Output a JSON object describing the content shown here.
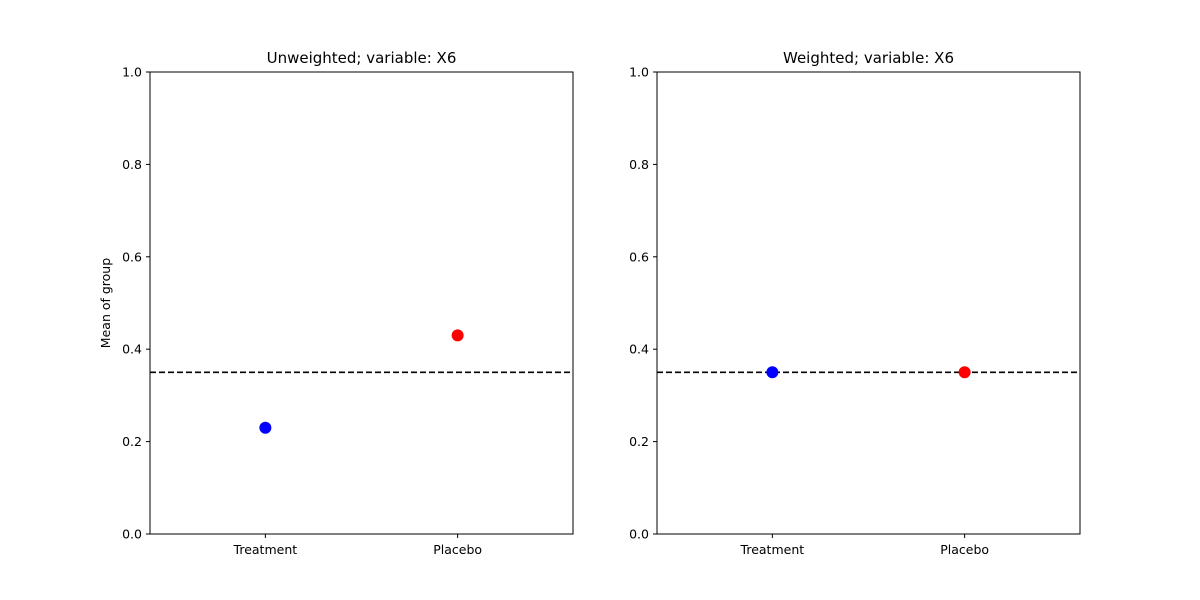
{
  "chart_data": [
    {
      "type": "scatter",
      "title": "Unweighted; variable: X6",
      "xlabel": "",
      "ylabel": "Mean of group",
      "categories": [
        "Treatment",
        "Placebo"
      ],
      "ylim": [
        0,
        1
      ],
      "yticks": [
        "0.0",
        "0.2",
        "0.4",
        "0.6",
        "0.8",
        "1.0"
      ],
      "grid": false,
      "points": [
        {
          "category": "Treatment",
          "y": 0.23,
          "color": "#0000ff"
        },
        {
          "category": "Placebo",
          "y": 0.43,
          "color": "#ff0000"
        }
      ],
      "reference_line": {
        "y": 0.35,
        "style": "dashed",
        "color": "#000000"
      }
    },
    {
      "type": "scatter",
      "title": "Weighted; variable: X6",
      "xlabel": "",
      "ylabel": "",
      "categories": [
        "Treatment",
        "Placebo"
      ],
      "ylim": [
        0,
        1
      ],
      "yticks": [
        "0.0",
        "0.2",
        "0.4",
        "0.6",
        "0.8",
        "1.0"
      ],
      "grid": false,
      "points": [
        {
          "category": "Treatment",
          "y": 0.35,
          "color": "#0000ff"
        },
        {
          "category": "Placebo",
          "y": 0.35,
          "color": "#ff0000"
        }
      ],
      "reference_line": {
        "y": 0.35,
        "style": "dashed",
        "color": "#000000"
      }
    }
  ]
}
